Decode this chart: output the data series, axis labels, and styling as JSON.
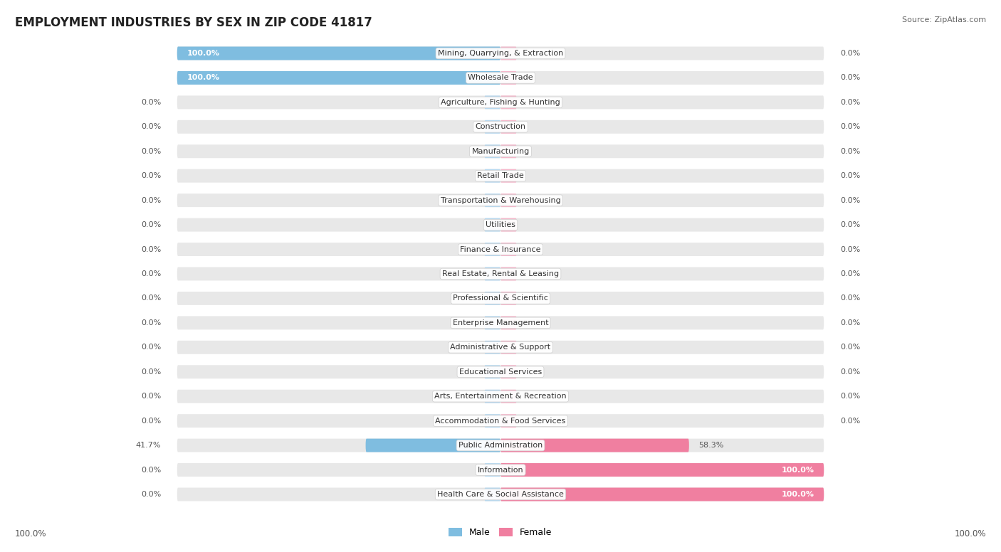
{
  "title": "EMPLOYMENT INDUSTRIES BY SEX IN ZIP CODE 41817",
  "source": "Source: ZipAtlas.com",
  "male_color": "#7fbde0",
  "female_color": "#f07fa0",
  "male_color_light": "#b8d9f0",
  "female_color_light": "#f5b8cb",
  "bg_color": "#e8e8e8",
  "row_bg": "#f0f0f0",
  "categories": [
    "Mining, Quarrying, & Extraction",
    "Wholesale Trade",
    "Agriculture, Fishing & Hunting",
    "Construction",
    "Manufacturing",
    "Retail Trade",
    "Transportation & Warehousing",
    "Utilities",
    "Finance & Insurance",
    "Real Estate, Rental & Leasing",
    "Professional & Scientific",
    "Enterprise Management",
    "Administrative & Support",
    "Educational Services",
    "Arts, Entertainment & Recreation",
    "Accommodation & Food Services",
    "Public Administration",
    "Information",
    "Health Care & Social Assistance"
  ],
  "male_pct": [
    100.0,
    100.0,
    0.0,
    0.0,
    0.0,
    0.0,
    0.0,
    0.0,
    0.0,
    0.0,
    0.0,
    0.0,
    0.0,
    0.0,
    0.0,
    0.0,
    41.7,
    0.0,
    0.0
  ],
  "female_pct": [
    0.0,
    0.0,
    0.0,
    0.0,
    0.0,
    0.0,
    0.0,
    0.0,
    0.0,
    0.0,
    0.0,
    0.0,
    0.0,
    0.0,
    0.0,
    0.0,
    58.3,
    100.0,
    100.0
  ],
  "fig_bg": "#ffffff",
  "title_fontsize": 12,
  "label_fontsize": 8,
  "pct_fontsize": 8
}
